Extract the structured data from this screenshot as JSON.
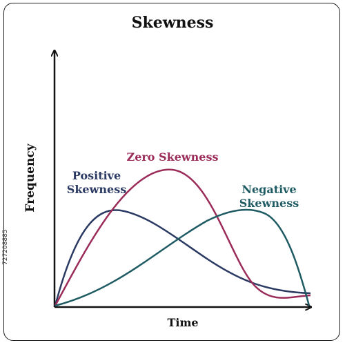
{
  "title": "Skewness",
  "axes": {
    "ylabel": "Frequency",
    "xlabel": "Time"
  },
  "curves": {
    "positive": {
      "line1": "Positive",
      "line2": "Skewness",
      "color": "#2b3a63"
    },
    "zero": {
      "label": "Zero Skewness",
      "color": "#9b2c59"
    },
    "negative": {
      "line1": "Negative",
      "line2": "Skewness",
      "color": "#1f5b63"
    }
  },
  "watermark": "727208885"
}
